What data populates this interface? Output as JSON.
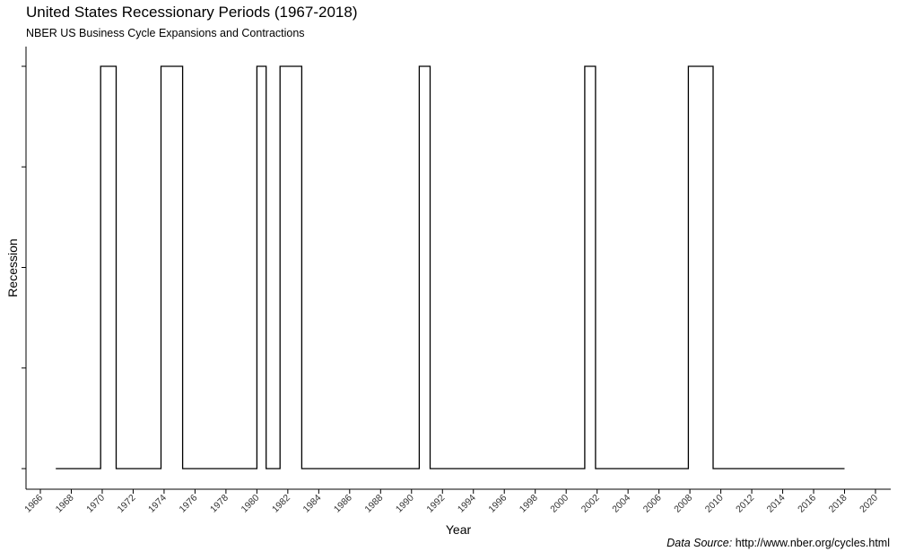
{
  "chart_data": {
    "type": "line",
    "title": "United States Recessionary Periods (1967-2018)",
    "subtitle": "NBER US Business Cycle Expansions and Contractions",
    "xlabel": "Year",
    "ylabel": "Recession",
    "caption_label": "Data Source:",
    "caption_value": "http://www.nber.org/cycles.html",
    "xlim": [
      1966,
      2020
    ],
    "ylim": [
      0,
      1
    ],
    "x_ticks": [
      1966,
      1968,
      1970,
      1972,
      1974,
      1976,
      1978,
      1980,
      1982,
      1984,
      1986,
      1988,
      1990,
      1992,
      1994,
      1996,
      1998,
      2000,
      2002,
      2004,
      2006,
      2008,
      2010,
      2012,
      2014,
      2016,
      2018,
      2020
    ],
    "y_tick_labels_shown": false,
    "grid": false,
    "line_color": "#000000",
    "series": [
      {
        "x": [
          1967.0,
          1969.9,
          1969.9,
          1970.9,
          1970.9,
          1973.8,
          1973.8,
          1975.2,
          1975.2,
          1980.0,
          1980.0,
          1980.6,
          1980.6,
          1981.5,
          1981.5,
          1982.9,
          1982.9,
          1990.5,
          1990.5,
          1991.2,
          1991.2,
          2001.2,
          2001.2,
          2001.9,
          2001.9,
          2007.9,
          2007.9,
          2009.5,
          2009.5,
          2018.0
        ],
        "y": [
          0,
          0,
          1,
          1,
          0,
          0,
          1,
          1,
          0,
          0,
          1,
          1,
          0,
          0,
          1,
          1,
          0,
          0,
          1,
          1,
          0,
          0,
          1,
          1,
          0,
          0,
          1,
          1,
          0,
          0
        ]
      }
    ]
  }
}
